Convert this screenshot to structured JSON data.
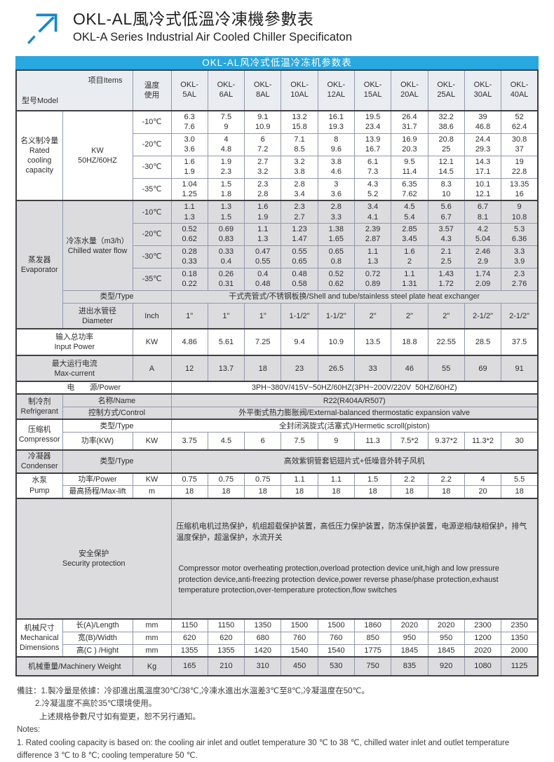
{
  "header": {
    "title_zh": "OKL-AL風冷式低溫冷凍機參數表",
    "title_en": "OKL-A Series Industrial Air Cooled Chiller Specificaton"
  },
  "table": {
    "banner": "OKL-AL风冷式低温冷冻机参数表",
    "corner": {
      "model": "型号Model",
      "items": "项目Items"
    },
    "temp_header": "温度\n使用",
    "models": [
      "OKL-\n5AL",
      "OKL-\n6AL",
      "OKL-\n8AL",
      "OKL-\n10AL",
      "OKL-\n12AL",
      "OKL-\n15AL",
      "OKL-\n20AL",
      "OKL-\n25AL",
      "OKL-\n30AL",
      "OKL-\n40AL"
    ],
    "temps": [
      "-10℃",
      "-20℃",
      "-30℃",
      "-35℃"
    ],
    "rated": {
      "group": "名义制冷量\nRated\ncooling\ncapacity",
      "item": "KW\n50HZ/60HZ"
    },
    "evap": {
      "group": "蒸发器\nEvaporator",
      "flow_item": "冷冻水量（m3/h）\nChilled water flow",
      "type_label": "类型/Type",
      "type_value": "干式壳管式/不锈钢板换/Shell and tube/stainless steel plate heat exchanger",
      "diameter_label": "进出水管径\nDiameter",
      "diameter_unit": "Inch"
    },
    "input_power": {
      "label": "输入总功率\nInput Power",
      "unit": "KW"
    },
    "max_current": {
      "label": "最大运行电流\nMax-current",
      "unit": "A"
    },
    "power": {
      "label": "电　　源/Power",
      "value": "3PH~380V/415V~50HZ/60HZ(3PH~200V/220V  50HZ/60HZ)"
    },
    "refrigerant": {
      "group": "制冷剂\nRefrigerant",
      "name_label": "名称/Name",
      "name_value": "R22(R404A/R507)",
      "control_label": "控制方式/Control",
      "control_value": "外平衡式热力膨胀阀/External-balanced thermostatic expansion valve"
    },
    "compressor": {
      "group": "压缩机\nCompressor",
      "type_label": "类型/Type",
      "type_value": "全封闭涡旋式(活塞式)/Hermetic scroll(piston)",
      "power_label": "功率(KW)",
      "power_unit": "KW"
    },
    "condenser": {
      "group": "冷凝器\nCondenser",
      "type_label": "类型/Type",
      "type_value": "高效紫铜管套铝翅片式+低噪音外转子风机"
    },
    "pump": {
      "group": "水泵\nPump",
      "power_label": "功率/Power",
      "power_unit": "KW",
      "lift_label": "最高扬程/Max-lift",
      "lift_unit": "m"
    },
    "security": {
      "label": "安全保护\nSecurity protection",
      "text_zh": "压缩机电机过热保护，机组超载保护装置，高低压力保护装置，防冻保护装置，电源逆相/缺相保护，排气温度保护，超温保护，水流开关",
      "text_en": "Compressor motor overheating protection,overload protection device unit,high and low pressure protection device,anti-freezing protection device,power reverse phase/phase protection,exhaust temperature protection,over-temperature protection,flow switches"
    },
    "mech": {
      "group": "机械尺寸\nMechanical\nDimensions",
      "length_label": "长(A)/Length",
      "width_label": "宽(B)/Width",
      "height_label": "高(C ) /Hight",
      "unit": "mm"
    },
    "weight": {
      "label": "机械重量/Machinery Weight",
      "unit": "Kg"
    },
    "values": {
      "rated_m10": [
        "6.3\n7.6",
        "7.5\n9",
        "9.1\n10.9",
        "13.2\n15.8",
        "16.1\n19.3",
        "19.5\n23.4",
        "26.4\n31.7",
        "32.2\n38.6",
        "39\n46.8",
        "52\n62.4"
      ],
      "rated_m20": [
        "3.0\n3.6",
        "4\n4.8",
        "6\n7.2",
        "7.1\n8.5",
        "8\n9.6",
        "13.9\n16.7",
        "16.9\n20.3",
        "20.8\n25",
        "24.4\n29.3",
        "30.8\n37"
      ],
      "rated_m30": [
        "1.6\n1.9",
        "1.9\n2.3",
        "2.7\n3.2",
        "3.2\n3.8",
        "3.8\n4.6",
        "6.1\n7.3",
        "9.5\n11.4",
        "12.1\n14.5",
        "14.3\n17.1",
        "19\n22.8"
      ],
      "rated_m35": [
        "1.04\n1.25",
        "1.5\n1.8",
        "2.3\n2.8",
        "2.8\n3.4",
        "3\n3.6",
        "4.3\n5.2",
        "6.35\n7.62",
        "8.3\n10",
        "10.1\n12.1",
        "13.35\n16"
      ],
      "flow_m10": [
        "1.1\n1.3",
        "1.3\n1.5",
        "1.6\n1.9",
        "2.3\n2.7",
        "2.8\n3.3",
        "3.4\n4.1",
        "4.5\n5.4",
        "5.6\n6.7",
        "6.7\n8.1",
        "9\n10.8"
      ],
      "flow_m20": [
        "0.52\n0.62",
        "0.69\n0.83",
        "1.1\n1.3",
        "1.23\n1.47",
        "1.38\n1.65",
        "2.39\n2.87",
        "2.85\n3.45",
        "3.57\n4.3",
        "4.2\n5.04",
        "5.3\n6.36"
      ],
      "flow_m30": [
        "0.28\n0.33",
        "0.33\n0.4",
        "0.47\n0.55",
        "0.55\n0.65",
        "0.65\n0.8",
        "1.1\n1.3",
        "1.6\n2",
        "2.1\n2.5",
        "2.46\n2.9",
        "3.3\n3.9"
      ],
      "flow_m35": [
        "0.18\n0.22",
        "0.26\n0.31",
        "0.4\n0.48",
        "0.48\n0.58",
        "0.52\n0.62",
        "0.72\n0.89",
        "1.1\n1.31",
        "1.43\n1.72",
        "1.74\n2.09",
        "2.3\n2.76"
      ],
      "diameter": [
        "1\"",
        "1\"",
        "1\"",
        "1-1/2\"",
        "1-1/2\"",
        "2\"",
        "2\"",
        "2\"",
        "2-1/2\"",
        "2-1/2\""
      ],
      "input_power": [
        "4.86",
        "5.61",
        "7.25",
        "9.4",
        "10.9",
        "13.5",
        "18.8",
        "22.55",
        "28.5",
        "37.5"
      ],
      "max_current": [
        "12",
        "13.7",
        "18",
        "23",
        "26.5",
        "33",
        "46",
        "55",
        "69",
        "91"
      ],
      "compressor_power": [
        "3.75",
        "4.5",
        "6",
        "7.5",
        "9",
        "11.3",
        "7.5*2",
        "9.37*2",
        "11.3*2",
        "30"
      ],
      "pump_power": [
        "0.75",
        "0.75",
        "0.75",
        "1.1",
        "1.1",
        "1.5",
        "2.2",
        "2.2",
        "4",
        "5.5"
      ],
      "max_lift": [
        "18",
        "18",
        "18",
        "18",
        "18",
        "18",
        "18",
        "18",
        "20",
        "18"
      ],
      "length": [
        "1150",
        "1150",
        "1350",
        "1500",
        "1500",
        "1860",
        "2020",
        "2020",
        "2300",
        "2350"
      ],
      "width": [
        "620",
        "620",
        "680",
        "760",
        "760",
        "850",
        "950",
        "950",
        "1200",
        "1350"
      ],
      "height": [
        "1355",
        "1355",
        "1420",
        "1540",
        "1540",
        "1775",
        "1845",
        "1845",
        "2020",
        "2000"
      ],
      "weight": [
        "165",
        "210",
        "310",
        "450",
        "530",
        "750",
        "835",
        "920",
        "1080",
        "1125"
      ]
    }
  },
  "notes": {
    "zh1": "備註：1.製冷量是依據：冷卻進出風溫度30℃/38℃,冷凍水進出水溫差3℃至8℃,冷凝溫度在50℃。",
    "zh2": "2.冷凝溫度不高於35℃環境使用。",
    "zh3": "上述規格參數尺寸如有變更，恕不另行通知。",
    "en_label": "Notes:",
    "en1": "1. Rated cooling capacity is based on: the cooling air inlet and outlet temperature 30 ℃ to 38 ℃, chilled water inlet and outlet temperature difference 3 ℃ to 8 ℃; cooling temperature 50 ℃."
  }
}
